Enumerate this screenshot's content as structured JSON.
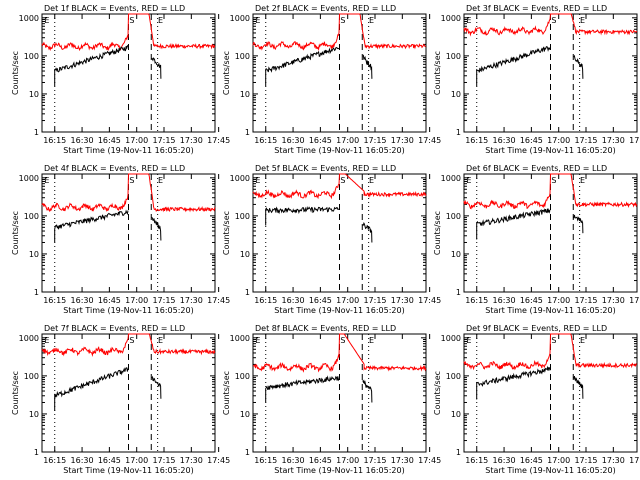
{
  "figure": {
    "common": {
      "xlabel": "Start Time (19-Nov-11 16:05:20)",
      "ylabel": "Counts/sec",
      "x_tick_labels": [
        "16:15",
        "16:30",
        "16:45",
        "17:00",
        "17:15",
        "17:30",
        "17:45"
      ],
      "y_tick_labels": [
        "1",
        "10",
        "100",
        "1000"
      ],
      "marker_labels": [
        "E",
        "S",
        "E"
      ]
    },
    "colors": {
      "events": "#000000",
      "lld": "#ff0000",
      "axis": "#000000"
    }
  },
  "chart_data": [
    {
      "type": "line",
      "title": "Det 1f BLACK = Events, RED = LLD",
      "x_range_minutes": [
        9.7,
        104.7
      ],
      "ylim": [
        1,
        1000
      ],
      "y_scale": "log",
      "dotted_lines": [
        16.7,
        73.2
      ],
      "dashed_lines": [
        57.2,
        69.7
      ],
      "marker_positions": [
        11,
        57.7,
        73.4
      ],
      "lld_profile": "peak",
      "lld_base": 180,
      "lld_end": 180,
      "events_start": 40,
      "events_end": 170,
      "events_after_start": 95,
      "events_after_end": 50,
      "peak_min": 62.5
    },
    {
      "type": "line",
      "title": "Det 2f BLACK = Events, RED = LLD",
      "x_range_minutes": [
        9.7,
        104.7
      ],
      "ylim": [
        1,
        1000
      ],
      "y_scale": "log",
      "dotted_lines": [
        16.7,
        73.2
      ],
      "dashed_lines": [
        57.2,
        69.7
      ],
      "marker_positions": [
        11,
        57.7,
        73.4
      ],
      "lld_profile": "peak",
      "lld_base": 190,
      "lld_end": 180,
      "events_start": 40,
      "events_end": 170,
      "events_after_start": 95,
      "events_after_end": 50,
      "peak_min": 62.5
    },
    {
      "type": "line",
      "title": "Det 3f BLACK = Events, RED = LLD",
      "x_range_minutes": [
        9.7,
        104.7
      ],
      "ylim": [
        1,
        1000
      ],
      "y_scale": "log",
      "dotted_lines": [
        16.7,
        73.2
      ],
      "dashed_lines": [
        57.2,
        69.7
      ],
      "marker_positions": [
        11,
        57.7,
        73.4
      ],
      "lld_profile": "peak",
      "lld_base": 460,
      "lld_end": 430,
      "events_start": 40,
      "events_end": 170,
      "events_after_start": 90,
      "events_after_end": 50,
      "peak_min": 62.5
    },
    {
      "type": "line",
      "title": "Det 4f BLACK = Events, RED = LLD",
      "x_range_minutes": [
        9.7,
        104.7
      ],
      "ylim": [
        1,
        1000
      ],
      "y_scale": "log",
      "dotted_lines": [
        16.7,
        73.2
      ],
      "dashed_lines": [
        57.2,
        69.7
      ],
      "marker_positions": [
        11,
        57.7,
        73.4
      ],
      "lld_profile": "peak",
      "lld_base": 170,
      "lld_end": 150,
      "events_start": 50,
      "events_end": 130,
      "events_after_start": 90,
      "events_after_end": 45,
      "peak_min": 62.5
    },
    {
      "type": "line",
      "title": "Det 5f BLACK = Events, RED = LLD",
      "x_range_minutes": [
        9.7,
        104.7
      ],
      "ylim": [
        1,
        1000
      ],
      "y_scale": "log",
      "dotted_lines": [
        16.7,
        73.2
      ],
      "dashed_lines": [
        57.2,
        69.7
      ],
      "marker_positions": [
        11,
        57.7,
        73.4
      ],
      "lld_profile": "decay",
      "lld_base": 370,
      "lld_end": 370,
      "events_start": 140,
      "events_end": 150,
      "events_after_start": 60,
      "events_after_end": 40,
      "peak_min": 62.5
    },
    {
      "type": "line",
      "title": "Det 6f BLACK = Events, RED = LLD",
      "x_range_minutes": [
        9.7,
        104.7
      ],
      "ylim": [
        1,
        1000
      ],
      "y_scale": "log",
      "dotted_lines": [
        16.7,
        73.2
      ],
      "dashed_lines": [
        57.2,
        69.7
      ],
      "marker_positions": [
        11,
        57.7,
        73.4
      ],
      "lld_profile": "peak",
      "lld_base": 200,
      "lld_end": 200,
      "events_start": 60,
      "events_end": 140,
      "events_after_start": 95,
      "events_after_end": 70,
      "peak_min": 62.5
    },
    {
      "type": "line",
      "title": "Det 7f BLACK = Events, RED = LLD",
      "x_range_minutes": [
        9.7,
        104.7
      ],
      "ylim": [
        1,
        1000
      ],
      "y_scale": "log",
      "dotted_lines": [
        16.7,
        73.2
      ],
      "dashed_lines": [
        57.2,
        69.7
      ],
      "marker_positions": [
        11,
        57.7,
        73.4
      ],
      "lld_profile": "peak",
      "lld_base": 450,
      "lld_end": 430,
      "events_start": 30,
      "events_end": 150,
      "events_after_start": 95,
      "events_after_end": 50,
      "peak_min": 62.5
    },
    {
      "type": "line",
      "title": "Det 8f BLACK = Events, RED = LLD",
      "x_range_minutes": [
        9.7,
        104.7
      ],
      "ylim": [
        1,
        1000
      ],
      "y_scale": "log",
      "dotted_lines": [
        16.7,
        73.2
      ],
      "dashed_lines": [
        57.2,
        69.7
      ],
      "marker_positions": [
        11,
        57.7,
        73.4
      ],
      "lld_profile": "decay",
      "lld_base": 170,
      "lld_end": 160,
      "events_start": 50,
      "events_end": 90,
      "events_after_start": 70,
      "events_after_end": 40,
      "peak_min": 62.5
    },
    {
      "type": "line",
      "title": "Det 9f BLACK = Events, RED = LLD",
      "x_range_minutes": [
        9.7,
        104.7
      ],
      "ylim": [
        1,
        1000
      ],
      "y_scale": "log",
      "dotted_lines": [
        16.7,
        73.2
      ],
      "dashed_lines": [
        57.2,
        69.7
      ],
      "marker_positions": [
        11,
        57.7,
        73.4
      ],
      "lld_profile": "peak",
      "lld_base": 190,
      "lld_end": 190,
      "events_start": 60,
      "events_end": 150,
      "events_after_start": 95,
      "events_after_end": 50,
      "peak_min": 62.5
    }
  ]
}
